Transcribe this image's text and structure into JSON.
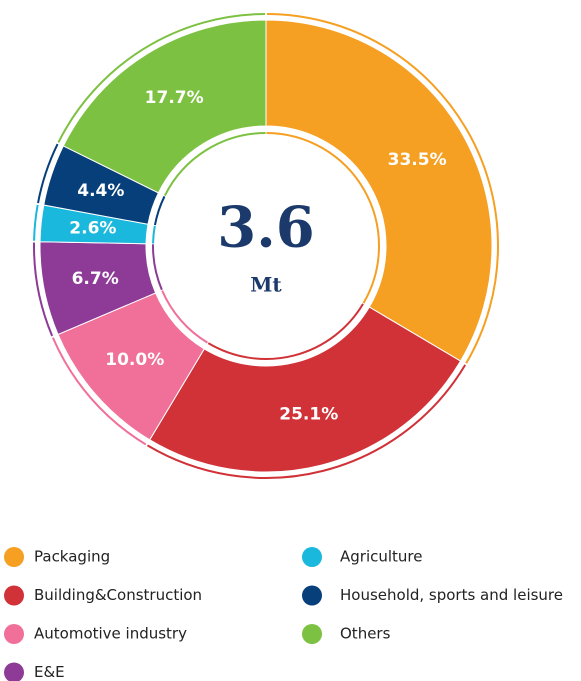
{
  "chart_data": {
    "type": "pie",
    "center_label": "3.6",
    "center_unit": "Mt",
    "categories": [
      "Packaging",
      "Building&Construction",
      "Automotive industry",
      "E&E",
      "Agriculture",
      "Household, sports and leisure",
      "Others"
    ],
    "values": [
      33.5,
      25.1,
      10.0,
      6.7,
      2.6,
      4.4,
      17.7
    ],
    "value_labels": [
      "33.5%",
      "25.1%",
      "10.0%",
      "6.7%",
      "2.6%",
      "4.4%",
      "17.7%"
    ],
    "colors": [
      "#f5a023",
      "#d03238",
      "#f07099",
      "#8e3b97",
      "#1ab8dc",
      "#073f7a",
      "#7dc142"
    ],
    "legend": "bottom"
  }
}
